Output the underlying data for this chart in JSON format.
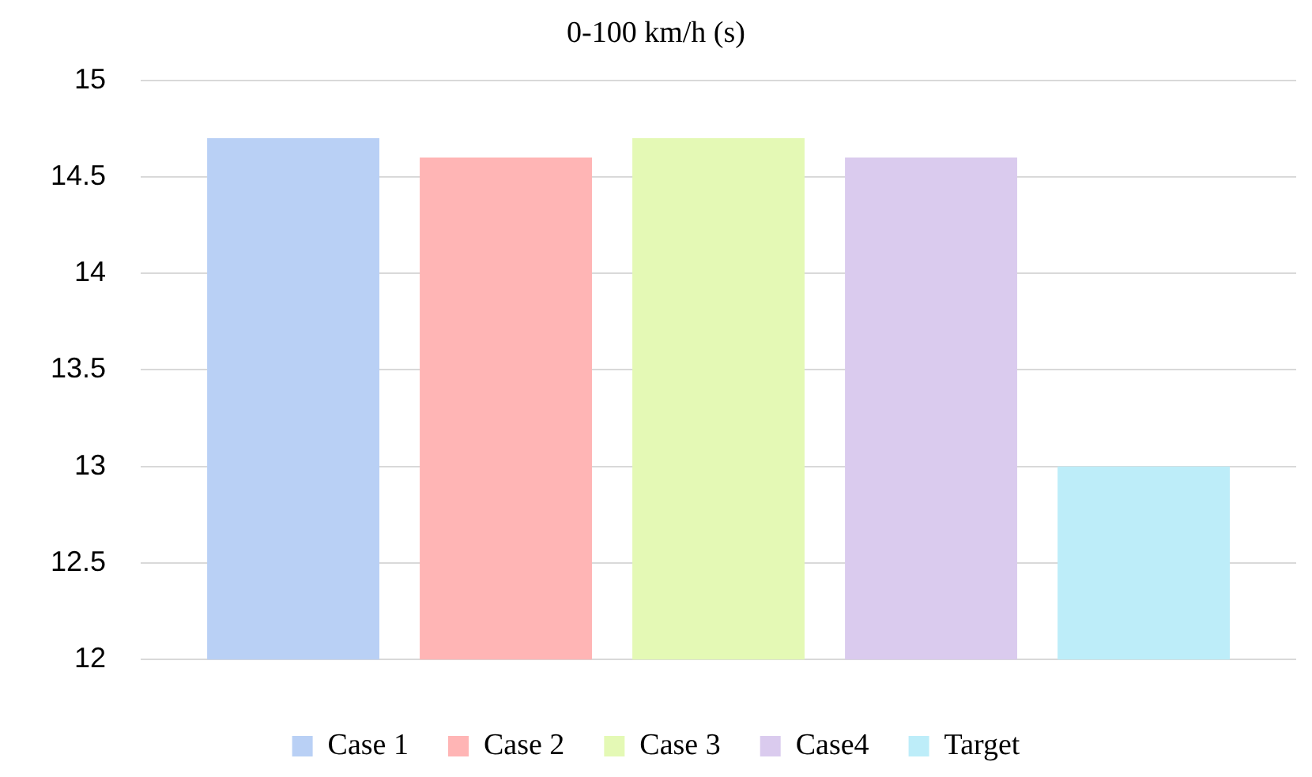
{
  "chart_data": {
    "type": "bar",
    "title": "0-100 km/h (s)",
    "categories": [
      null
    ],
    "series": [
      {
        "name": "Case 1",
        "color": "#b9d0f5",
        "values": [
          14.7
        ]
      },
      {
        "name": "Case 2",
        "color": "#ffb5b5",
        "values": [
          14.6
        ]
      },
      {
        "name": "Case 3",
        "color": "#e4f9b5",
        "values": [
          14.7
        ]
      },
      {
        "name": "Case4",
        "color": "#dacbee",
        "values": [
          14.6
        ]
      },
      {
        "name": "Target",
        "color": "#bdedf9",
        "values": [
          13
        ]
      }
    ],
    "ylim": [
      12,
      15
    ],
    "yticks": [
      12,
      12.5,
      13,
      13.5,
      14,
      14.5,
      15
    ],
    "grid": "y",
    "legend": "bottom"
  }
}
